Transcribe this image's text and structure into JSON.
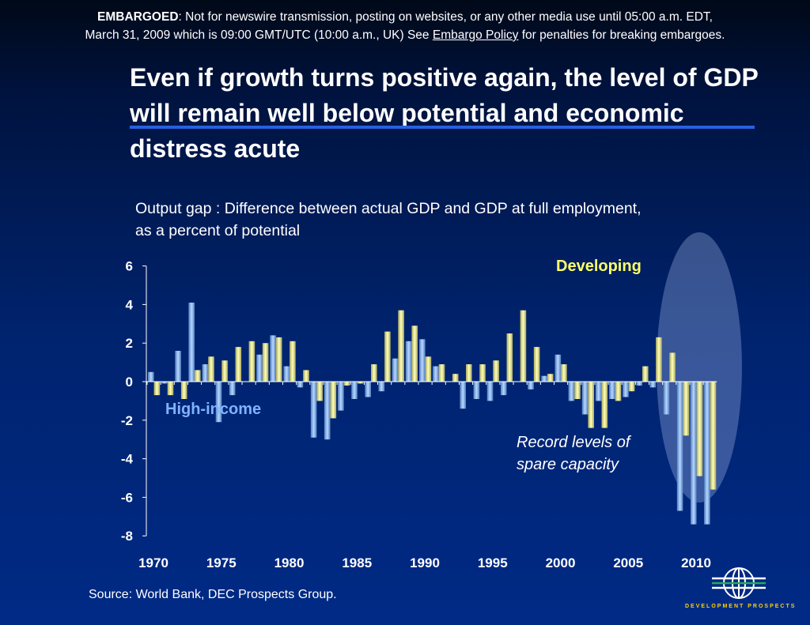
{
  "embargo": {
    "label": "EMBARGOED",
    "text_1": ": Not for newswire transmission, posting on websites, or any other media use until 05:00 a.m. EDT,",
    "text_2": "March 31, 2009 which is 09:00 GMT/UTC (10:00 a.m., UK) See ",
    "link": "Embargo Policy",
    "text_3": " for penalties for breaking embargoes."
  },
  "title": "Even if growth turns positive again, the level of GDP will remain well below potential and economic distress acute",
  "subtitle_1": "Output gap : Difference between actual GDP and GDP at full employment,",
  "subtitle_2": "as a percent of potential",
  "annotation_1": "Record levels of",
  "annotation_2": "spare capacity",
  "source": "Source: World Bank, DEC Prospects Group.",
  "logo_text": "DEVELOPMENT PROSPECTS",
  "colors": {
    "high_income": "#7fb3ff",
    "developing": "#ffff88",
    "highlight": "#96aadc"
  },
  "chart_data": {
    "type": "bar",
    "x": [
      1970,
      1971,
      1972,
      1973,
      1974,
      1975,
      1976,
      1977,
      1978,
      1979,
      1980,
      1981,
      1982,
      1983,
      1984,
      1985,
      1986,
      1987,
      1988,
      1989,
      1990,
      1991,
      1992,
      1993,
      1994,
      1995,
      1996,
      1997,
      1998,
      1999,
      2000,
      2001,
      2002,
      2003,
      2004,
      2005,
      2006,
      2007,
      2008,
      2009,
      2010,
      2011
    ],
    "series": [
      {
        "name": "High-income",
        "values": [
          0.5,
          -0.1,
          1.6,
          4.1,
          0.9,
          -2.1,
          -0.7,
          0.0,
          1.4,
          2.4,
          0.8,
          -0.3,
          -2.9,
          -3.0,
          -1.5,
          -0.9,
          -0.8,
          -0.5,
          1.2,
          2.1,
          2.2,
          0.8,
          0.0,
          -1.4,
          -0.9,
          -1.0,
          -0.7,
          0.0,
          -0.4,
          0.3,
          1.4,
          -1.0,
          -1.7,
          -1.0,
          -0.9,
          -0.8,
          -0.2,
          -0.3,
          -1.7,
          -6.7,
          -7.4,
          -7.4
        ]
      },
      {
        "name": "Developing",
        "values": [
          -0.7,
          -0.7,
          -0.9,
          0.6,
          1.3,
          1.1,
          1.8,
          2.1,
          2.0,
          2.3,
          2.1,
          0.6,
          -1.0,
          -1.9,
          -0.2,
          -0.1,
          0.9,
          2.6,
          3.7,
          2.9,
          1.3,
          0.9,
          0.4,
          0.9,
          0.9,
          1.1,
          2.5,
          3.7,
          1.8,
          0.4,
          0.9,
          -0.9,
          -2.4,
          -2.4,
          -1.0,
          -0.5,
          0.8,
          2.3,
          1.5,
          -2.8,
          -4.9,
          -5.6
        ]
      }
    ],
    "xticks": [
      "1970",
      "1975",
      "1980",
      "1985",
      "1990",
      "1995",
      "2000",
      "2005",
      "2010"
    ],
    "yticks": [
      "6",
      "4",
      "2",
      "0",
      "-2",
      "-4",
      "-6",
      "-8"
    ],
    "ylim": [
      -8,
      6
    ]
  }
}
